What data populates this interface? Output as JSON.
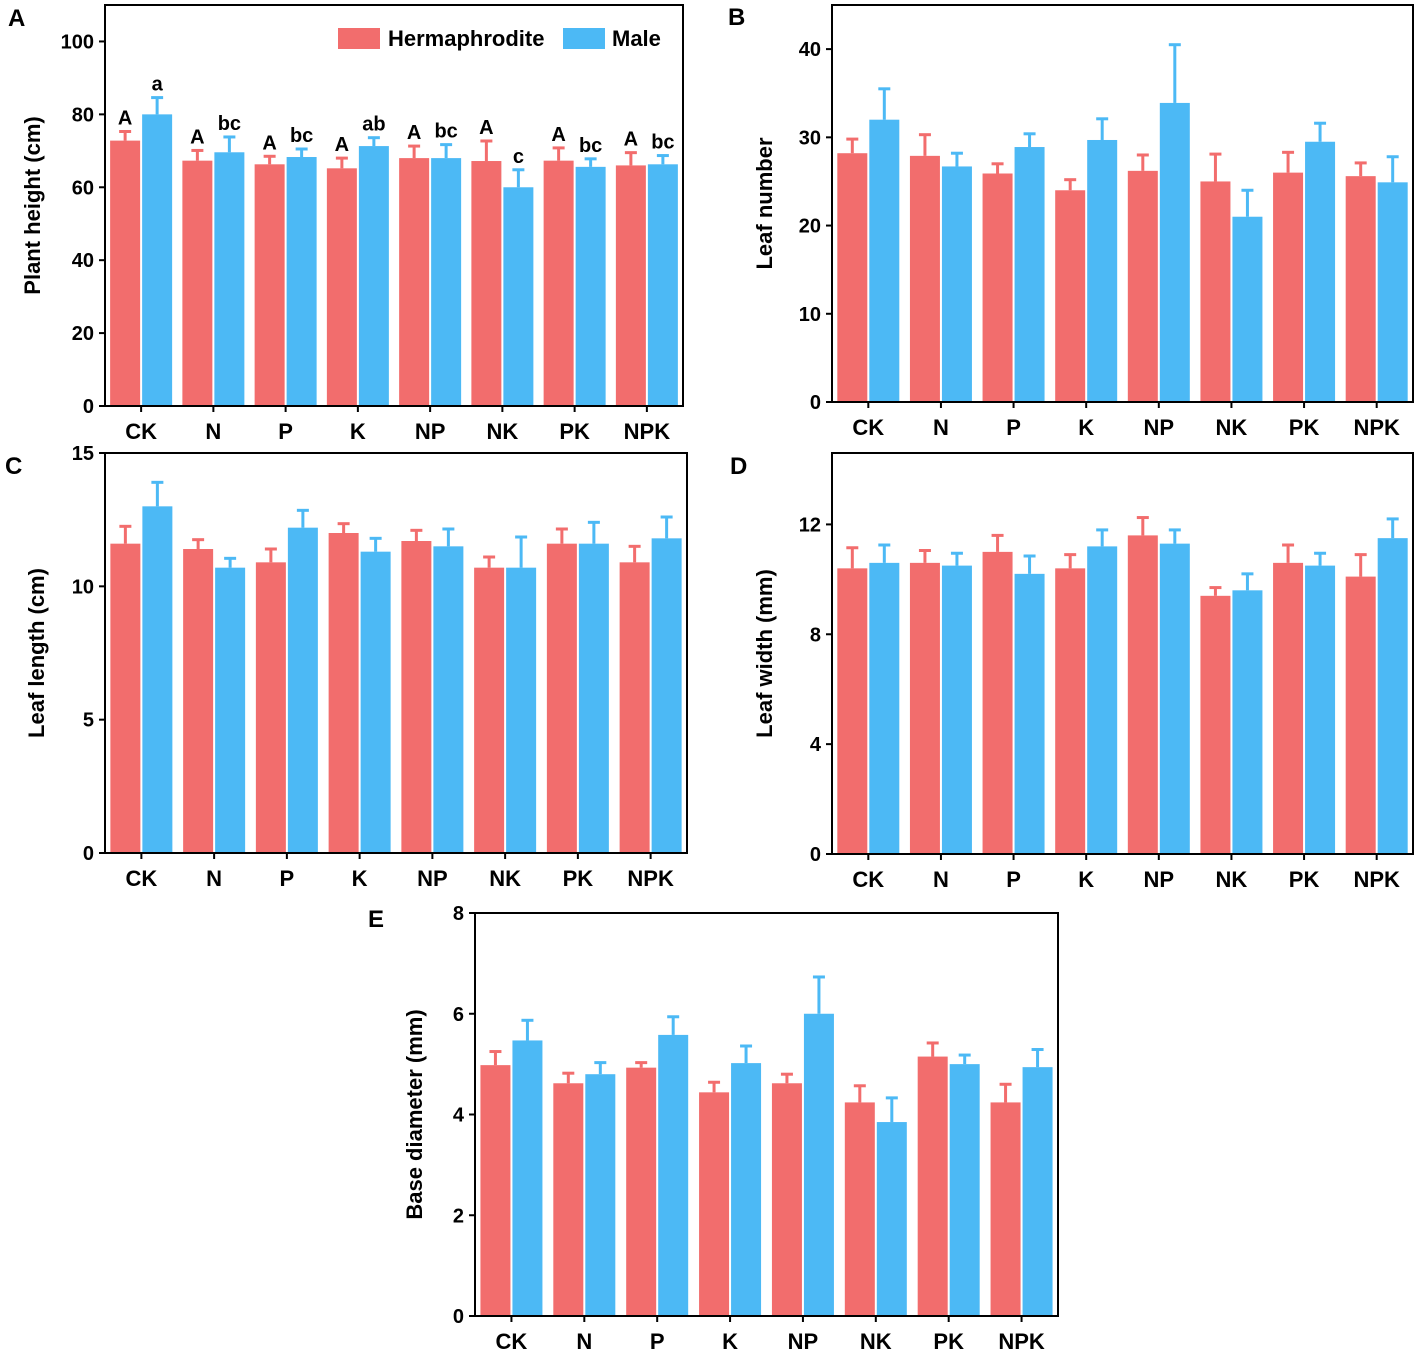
{
  "colors": {
    "hermaphrodite": "#f26d6d",
    "male": "#4cb9f5"
  },
  "legend": {
    "hermaphrodite": "Hermaphrodite",
    "male": "Male"
  },
  "chart_data": [
    {
      "panel": "A",
      "type": "bar",
      "ylabel": "Plant height (cm)",
      "ylim": [
        0,
        110
      ],
      "yticks": [
        0,
        20,
        40,
        60,
        80,
        100
      ],
      "categories": [
        "CK",
        "N",
        "P",
        "K",
        "NP",
        "NK",
        "PK",
        "NPK"
      ],
      "series": [
        {
          "name": "Hermaphrodite",
          "values": [
            72.8,
            67.3,
            66.3,
            65.2,
            68.0,
            67.2,
            67.3,
            66.0
          ],
          "errors": [
            2.5,
            2.8,
            2.2,
            2.8,
            3.3,
            5.5,
            3.5,
            3.5
          ],
          "labels": [
            "A",
            "A",
            "A",
            "A",
            "A",
            "A",
            "A",
            "A"
          ]
        },
        {
          "name": "Male",
          "values": [
            80.0,
            69.6,
            68.3,
            71.3,
            68.0,
            60.0,
            65.6,
            66.3
          ],
          "errors": [
            4.6,
            4.2,
            2.2,
            2.3,
            3.7,
            4.8,
            2.2,
            2.4
          ],
          "labels": [
            "a",
            "bc",
            "bc",
            "ab",
            "bc",
            "c",
            "bc",
            "bc"
          ]
        }
      ]
    },
    {
      "panel": "B",
      "type": "bar",
      "ylabel": "Leaf number",
      "ylim": [
        0,
        45
      ],
      "yticks": [
        0,
        10,
        20,
        30,
        40
      ],
      "categories": [
        "CK",
        "N",
        "P",
        "K",
        "NP",
        "NK",
        "PK",
        "NPK"
      ],
      "series": [
        {
          "name": "Hermaphrodite",
          "values": [
            28.2,
            27.9,
            25.9,
            24.0,
            26.2,
            25.0,
            26.0,
            25.6
          ],
          "errors": [
            1.6,
            2.4,
            1.1,
            1.2,
            1.8,
            3.1,
            2.3,
            1.5
          ]
        },
        {
          "name": "Male",
          "values": [
            32.0,
            26.7,
            28.9,
            29.7,
            33.9,
            21.0,
            29.5,
            24.9
          ],
          "errors": [
            3.5,
            1.5,
            1.5,
            2.4,
            6.6,
            3.0,
            2.1,
            2.9
          ]
        }
      ]
    },
    {
      "panel": "C",
      "type": "bar",
      "ylabel": "Leaf length (cm)",
      "ylim": [
        0,
        15
      ],
      "yticks": [
        0,
        5,
        10,
        15
      ],
      "categories": [
        "CK",
        "N",
        "P",
        "K",
        "NP",
        "NK",
        "PK",
        "NPK"
      ],
      "series": [
        {
          "name": "Hermaphrodite",
          "values": [
            11.6,
            11.4,
            10.9,
            12.0,
            11.7,
            10.7,
            11.6,
            10.9
          ],
          "errors": [
            0.65,
            0.35,
            0.5,
            0.35,
            0.4,
            0.4,
            0.55,
            0.6
          ]
        },
        {
          "name": "Male",
          "values": [
            13.0,
            10.7,
            12.2,
            11.3,
            11.5,
            10.7,
            11.6,
            11.8
          ],
          "errors": [
            0.9,
            0.35,
            0.65,
            0.5,
            0.65,
            1.15,
            0.8,
            0.8
          ]
        }
      ]
    },
    {
      "panel": "D",
      "type": "bar",
      "ylabel": "Leaf width (mm)",
      "ylim": [
        0,
        14.6
      ],
      "yticks": [
        0,
        4,
        8,
        12
      ],
      "categories": [
        "CK",
        "N",
        "P",
        "K",
        "NP",
        "NK",
        "PK",
        "NPK"
      ],
      "series": [
        {
          "name": "Hermaphrodite",
          "values": [
            10.4,
            10.6,
            11.0,
            10.4,
            11.6,
            9.4,
            10.6,
            10.1
          ],
          "errors": [
            0.75,
            0.45,
            0.6,
            0.5,
            0.65,
            0.3,
            0.65,
            0.8
          ]
        },
        {
          "name": "Male",
          "values": [
            10.6,
            10.5,
            10.2,
            11.2,
            11.3,
            9.6,
            10.5,
            11.5
          ],
          "errors": [
            0.65,
            0.45,
            0.65,
            0.6,
            0.5,
            0.6,
            0.45,
            0.7
          ]
        }
      ]
    },
    {
      "panel": "E",
      "type": "bar",
      "ylabel": "Base diameter (mm)",
      "ylim": [
        0,
        8
      ],
      "yticks": [
        0,
        2,
        4,
        6,
        8
      ],
      "categories": [
        "CK",
        "N",
        "P",
        "K",
        "NP",
        "NK",
        "PK",
        "NPK"
      ],
      "series": [
        {
          "name": "Hermaphrodite",
          "values": [
            4.98,
            4.62,
            4.93,
            4.44,
            4.62,
            4.24,
            5.15,
            4.24
          ],
          "errors": [
            0.27,
            0.2,
            0.1,
            0.2,
            0.18,
            0.33,
            0.27,
            0.36
          ]
        },
        {
          "name": "Male",
          "values": [
            5.47,
            4.8,
            5.58,
            5.02,
            6.0,
            3.85,
            5.0,
            4.94
          ],
          "errors": [
            0.4,
            0.23,
            0.36,
            0.34,
            0.73,
            0.48,
            0.18,
            0.35
          ]
        }
      ]
    }
  ]
}
